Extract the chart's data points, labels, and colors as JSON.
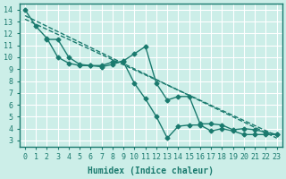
{
  "xlabel": "Humidex (Indice chaleur)",
  "bg_color": "#cceee8",
  "grid_color": "#ffffff",
  "line_color": "#1a7a6e",
  "xlim": [
    -0.5,
    23.5
  ],
  "ylim": [
    2.5,
    14.5
  ],
  "xticks": [
    0,
    1,
    2,
    3,
    4,
    5,
    6,
    7,
    8,
    9,
    10,
    11,
    12,
    13,
    14,
    15,
    16,
    17,
    18,
    19,
    20,
    21,
    22,
    23
  ],
  "yticks": [
    3,
    4,
    5,
    6,
    7,
    8,
    9,
    10,
    11,
    12,
    13,
    14
  ],
  "lines": [
    {
      "x": [
        0,
        1,
        2,
        3,
        4,
        5,
        6,
        7,
        8,
        9,
        10,
        11,
        12,
        13,
        14,
        15,
        16,
        17,
        18,
        19,
        20,
        21,
        22,
        23
      ],
      "y": [
        14.0,
        12.6,
        11.6,
        10.0,
        9.5,
        9.3,
        9.3,
        9.3,
        9.6,
        9.6,
        7.8,
        6.5,
        5.0,
        3.2,
        4.2,
        4.3,
        4.3,
        3.8,
        4.0,
        3.8,
        3.5,
        3.5,
        3.5,
        3.5
      ],
      "style": "-",
      "marker": "D",
      "markersize": 2.5
    },
    {
      "x": [
        2,
        3,
        4,
        5,
        6,
        7,
        8,
        9,
        10,
        11,
        12,
        13,
        14,
        15,
        16,
        17,
        18,
        19,
        20,
        21,
        22,
        23
      ],
      "y": [
        11.5,
        11.5,
        10.0,
        9.4,
        9.3,
        9.2,
        9.4,
        9.7,
        10.3,
        10.9,
        7.8,
        6.4,
        6.7,
        6.7,
        4.4,
        4.4,
        4.3,
        3.9,
        4.0,
        3.9,
        3.7,
        3.5
      ],
      "style": "-",
      "marker": "D",
      "markersize": 2.5
    },
    {
      "x": [
        0,
        23
      ],
      "y": [
        13.5,
        3.2
      ],
      "style": "--",
      "marker": "",
      "markersize": 0
    },
    {
      "x": [
        0,
        23
      ],
      "y": [
        13.2,
        3.4
      ],
      "style": "--",
      "marker": "",
      "markersize": 0
    }
  ]
}
